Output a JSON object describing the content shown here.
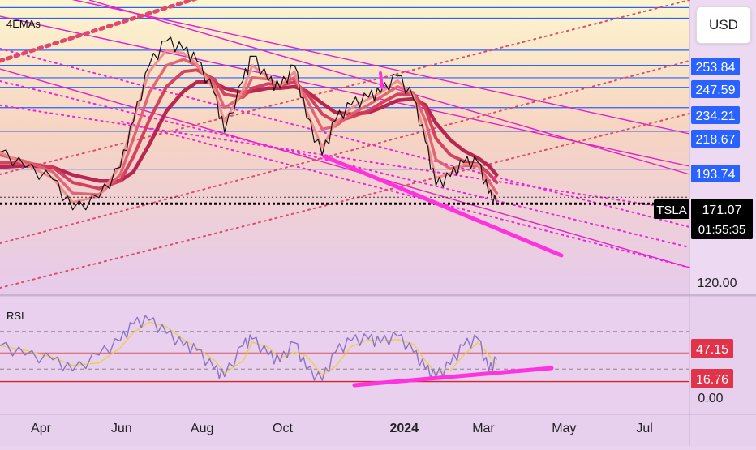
{
  "header": {
    "currency_button": "USD"
  },
  "chart_data": [
    {
      "type": "line",
      "pane": "price",
      "indicator_label": "4EMAs",
      "ticker": "TSLA",
      "last_price": "171.07",
      "countdown": "01:55:35",
      "x_ticks": [
        "Apr",
        "Jun",
        "Aug",
        "Oct",
        "2024",
        "Mar",
        "May",
        "Jul"
      ],
      "y_tick_labels": [
        "253.84",
        "247.59",
        "234.21",
        "218.67",
        "193.74",
        "120.00"
      ],
      "axis_badges": [
        "253.84",
        "247.59",
        "234.21",
        "218.67",
        "193.74"
      ],
      "horizontal_levels": [
        300,
        293,
        272,
        262,
        253.84,
        247.59,
        234.21,
        218.67,
        193.74
      ],
      "ylim": [
        112,
        305
      ],
      "series": [
        {
          "x": [
            "2023-03-01",
            "2023-03-20",
            "2023-04-10",
            "2023-04-25",
            "2023-05-15",
            "2023-05-31",
            "2023-06-10",
            "2023-06-22",
            "2023-07-05",
            "2023-07-18",
            "2023-07-28",
            "2023-08-10",
            "2023-08-18",
            "2023-09-01",
            "2023-09-08",
            "2023-09-20",
            "2023-09-29",
            "2023-10-10",
            "2023-10-19",
            "2023-10-31",
            "2023-11-10",
            "2023-11-22",
            "2023-12-05",
            "2023-12-14",
            "2023-12-27",
            "2024-01-08",
            "2024-01-17",
            "2024-01-25",
            "2024-02-05",
            "2024-02-15",
            "2024-02-26",
            "2024-03-05",
            "2024-03-11"
          ],
          "values": [
            205,
            195,
            187,
            167,
            175,
            195,
            225,
            262,
            278,
            272,
            265,
            244,
            218,
            252,
            268,
            252,
            247,
            262,
            228,
            203,
            226,
            236,
            241,
            244,
            255,
            240,
            212,
            183,
            189,
            198,
            198,
            178,
            171
          ]
        }
      ],
      "ema_values": {
        "ema_a": [
          205,
          197,
          188,
          172,
          176,
          196,
          226,
          258,
          272,
          270,
          263,
          246,
          225,
          246,
          262,
          254,
          248,
          258,
          232,
          208,
          224,
          234,
          240,
          244,
          252,
          242,
          216,
          188,
          191,
          197,
          197,
          181,
          174
        ],
        "ema_b": [
          203,
          199,
          192,
          178,
          177,
          190,
          214,
          244,
          262,
          266,
          262,
          250,
          234,
          242,
          254,
          253,
          249,
          254,
          240,
          220,
          222,
          230,
          236,
          241,
          248,
          244,
          226,
          200,
          194,
          196,
          196,
          186,
          178
        ],
        "ema_c": [
          198,
          198,
          195,
          185,
          181,
          186,
          202,
          226,
          248,
          258,
          259,
          253,
          243,
          241,
          247,
          250,
          249,
          251,
          244,
          230,
          225,
          228,
          232,
          237,
          243,
          243,
          234,
          214,
          203,
          199,
          197,
          191,
          185
        ],
        "ema_d": [
          195,
          196,
          195,
          190,
          186,
          186,
          192,
          210,
          232,
          245,
          251,
          251,
          247,
          244,
          245,
          247,
          247,
          248,
          245,
          237,
          231,
          230,
          231,
          234,
          239,
          240,
          236,
          224,
          213,
          206,
          201,
          196,
          190
        ]
      },
      "colors": {
        "price": "#111111",
        "ema_fast": "#ef8a8a",
        "ema_mid": "#e15f6e",
        "ema_slow": "#d23a5a",
        "ema_slowest": "#b41e4b",
        "levels": "#2962ff",
        "channel": "#e020c8",
        "dotted_magenta": "#ee22dd",
        "dotted_red": "#e04a6a",
        "trend_highlight": "#ff33dd",
        "badge_blue": "#2962ff",
        "badge_ticker": "#000000"
      }
    },
    {
      "type": "line",
      "pane": "rsi",
      "indicator_label": "RSI",
      "y_tick_labels": [
        "0.00"
      ],
      "axis_badges": [
        "47.15",
        "16.76"
      ],
      "bands": [
        70,
        30
      ],
      "ylim": [
        0,
        100
      ],
      "series": [
        {
          "name": "",
          "x": [
            "2023-03-01",
            "2023-03-20",
            "2023-04-10",
            "2023-04-25",
            "2023-05-15",
            "2023-05-31",
            "2023-06-10",
            "2023-06-22",
            "2023-07-05",
            "2023-07-18",
            "2023-07-28",
            "2023-08-10",
            "2023-08-18",
            "2023-09-01",
            "2023-09-08",
            "2023-09-20",
            "2023-09-29",
            "2023-10-10",
            "2023-10-19",
            "2023-10-31",
            "2023-11-10",
            "2023-11-22",
            "2023-12-05",
            "2023-12-14",
            "2023-12-27",
            "2024-01-08",
            "2024-01-17",
            "2024-01-25",
            "2024-02-05",
            "2024-02-15",
            "2024-02-26",
            "2024-03-05",
            "2024-03-11"
          ],
          "values": [
            55,
            45,
            40,
            28,
            45,
            60,
            78,
            82,
            68,
            55,
            50,
            30,
            22,
            55,
            62,
            45,
            38,
            58,
            30,
            18,
            48,
            60,
            62,
            58,
            65,
            48,
            30,
            22,
            35,
            55,
            62,
            28,
            40
          ]
        }
      ],
      "colors": {
        "rsi": "#8a74c2",
        "signal": "#e9d04a",
        "band_lines": "#888888",
        "red_line": "#dd2222",
        "divergence": "#ff33dd",
        "badge": "#e2334a"
      }
    }
  ]
}
